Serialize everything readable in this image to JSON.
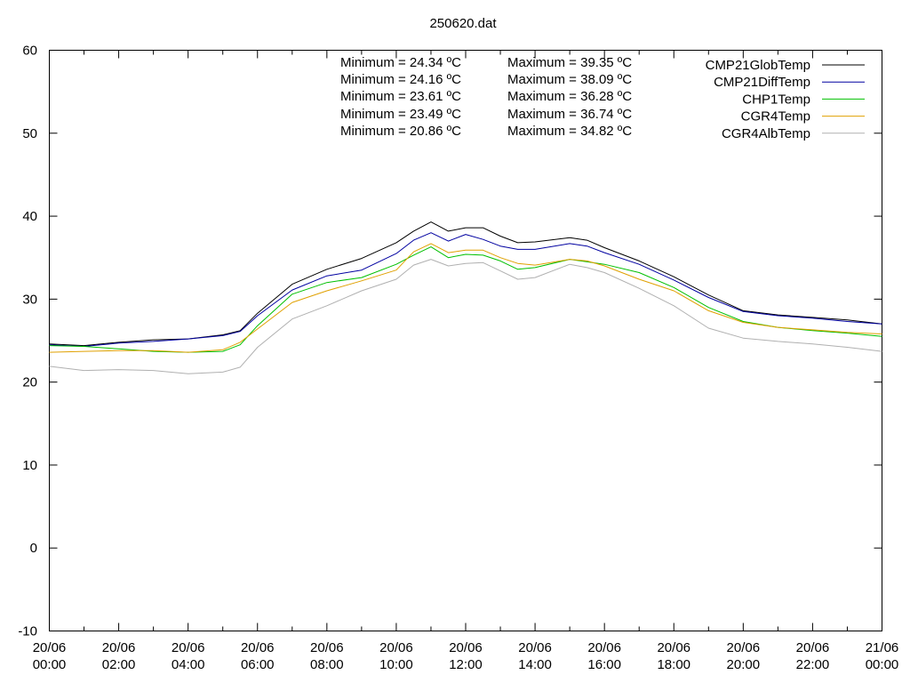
{
  "chart_data": {
    "type": "line",
    "title": "250620.dat",
    "xlabel": "",
    "ylabel": "",
    "ylim": [
      -10,
      60
    ],
    "yticks": [
      -10,
      0,
      10,
      20,
      30,
      40,
      50,
      60
    ],
    "xlim_hours": [
      0,
      24
    ],
    "xticks": [
      {
        "hour": 0,
        "date": "20/06",
        "time": "00:00"
      },
      {
        "hour": 2,
        "date": "20/06",
        "time": "02:00"
      },
      {
        "hour": 4,
        "date": "20/06",
        "time": "04:00"
      },
      {
        "hour": 6,
        "date": "20/06",
        "time": "06:00"
      },
      {
        "hour": 8,
        "date": "20/06",
        "time": "08:00"
      },
      {
        "hour": 10,
        "date": "20/06",
        "time": "10:00"
      },
      {
        "hour": 12,
        "date": "20/06",
        "time": "12:00"
      },
      {
        "hour": 14,
        "date": "20/06",
        "time": "14:00"
      },
      {
        "hour": 16,
        "date": "20/06",
        "time": "16:00"
      },
      {
        "hour": 18,
        "date": "20/06",
        "time": "18:00"
      },
      {
        "hour": 20,
        "date": "20/06",
        "time": "20:00"
      },
      {
        "hour": 22,
        "date": "20/06",
        "time": "22:00"
      },
      {
        "hour": 24,
        "date": "21/06",
        "time": "00:00"
      }
    ],
    "grid": false,
    "legend_position": "top-right",
    "stats": [
      {
        "min": "Minimum = 24.34 ºC",
        "max": "Maximum = 39.35 ºC"
      },
      {
        "min": "Minimum = 24.16 ºC",
        "max": "Maximum = 38.09 ºC"
      },
      {
        "min": "Minimum = 23.61 ºC",
        "max": "Maximum = 36.28 ºC"
      },
      {
        "min": "Minimum = 23.49 ºC",
        "max": "Maximum = 36.74 ºC"
      },
      {
        "min": "Minimum = 20.86 ºC",
        "max": "Maximum = 34.82 ºC"
      }
    ],
    "series": [
      {
        "name": "CMP21GlobTemp",
        "color": "#000000",
        "x": [
          0,
          1,
          2,
          3,
          4,
          5,
          5.5,
          6,
          7,
          8,
          9,
          10,
          10.5,
          11,
          11.5,
          12,
          12.5,
          13,
          13.5,
          14,
          15,
          15.5,
          16,
          17,
          18,
          19,
          20,
          21,
          22,
          23,
          24
        ],
        "y": [
          24.6,
          24.4,
          24.8,
          25.1,
          25.2,
          25.7,
          26.2,
          28.3,
          31.8,
          33.6,
          34.9,
          36.8,
          38.2,
          39.3,
          38.2,
          38.6,
          38.6,
          37.6,
          36.8,
          36.9,
          37.4,
          37.1,
          36.2,
          34.6,
          32.7,
          30.5,
          28.6,
          28.1,
          27.8,
          27.5,
          27.0
        ]
      },
      {
        "name": "CMP21DiffTemp",
        "color": "#0000a0",
        "x": [
          0,
          1,
          2,
          3,
          4,
          5,
          5.5,
          6,
          7,
          8,
          9,
          10,
          10.5,
          11,
          11.5,
          12,
          12.5,
          13,
          13.5,
          14,
          15,
          15.5,
          16,
          17,
          18,
          19,
          20,
          21,
          22,
          23,
          24
        ],
        "y": [
          24.5,
          24.3,
          24.7,
          24.9,
          25.2,
          25.6,
          26.1,
          28.0,
          31.1,
          32.8,
          33.5,
          35.5,
          37.1,
          38.0,
          37.0,
          37.8,
          37.2,
          36.4,
          36.0,
          36.0,
          36.7,
          36.4,
          35.6,
          34.2,
          32.3,
          30.2,
          28.5,
          28.0,
          27.7,
          27.3,
          27.0
        ]
      },
      {
        "name": "CHP1Temp",
        "color": "#00c000",
        "x": [
          0,
          1,
          2,
          3,
          4,
          5,
          5.5,
          6,
          7,
          8,
          9,
          10,
          10.5,
          11,
          11.5,
          12,
          12.5,
          13,
          13.5,
          14,
          15,
          15.5,
          16,
          17,
          18,
          19,
          20,
          21,
          22,
          23,
          24
        ],
        "y": [
          24.4,
          24.3,
          24.0,
          23.7,
          23.6,
          23.7,
          24.5,
          26.8,
          30.6,
          32.0,
          32.6,
          34.2,
          35.3,
          36.3,
          35.0,
          35.4,
          35.3,
          34.6,
          33.6,
          33.8,
          34.8,
          34.5,
          34.2,
          33.2,
          31.4,
          29.0,
          27.3,
          26.6,
          26.2,
          25.9,
          25.5
        ]
      },
      {
        "name": "CGR4Temp",
        "color": "#e0a000",
        "x": [
          0,
          1,
          2,
          3,
          4,
          5,
          5.5,
          6,
          7,
          8,
          9,
          10,
          10.5,
          11,
          11.5,
          12,
          12.5,
          13,
          13.5,
          14,
          15,
          15.5,
          16,
          17,
          18,
          19,
          20,
          21,
          22,
          23,
          24
        ],
        "y": [
          23.6,
          23.7,
          23.8,
          23.8,
          23.6,
          23.9,
          24.8,
          26.4,
          29.6,
          31.0,
          32.2,
          33.5,
          35.7,
          36.7,
          35.6,
          35.9,
          35.9,
          35.0,
          34.3,
          34.1,
          34.8,
          34.6,
          34.0,
          32.4,
          31.0,
          28.6,
          27.2,
          26.6,
          26.3,
          26.0,
          25.8
        ]
      },
      {
        "name": "CGR4AlbTemp",
        "color": "#b0b0b0",
        "x": [
          0,
          1,
          2,
          3,
          4,
          5,
          5.5,
          6,
          7,
          8,
          9,
          10,
          10.5,
          11,
          11.5,
          12,
          12.5,
          13,
          13.5,
          14,
          15,
          15.5,
          16,
          17,
          18,
          19,
          20,
          21,
          22,
          23,
          24
        ],
        "y": [
          21.9,
          21.4,
          21.5,
          21.4,
          21.0,
          21.2,
          21.8,
          24.2,
          27.6,
          29.2,
          31.0,
          32.4,
          34.1,
          34.8,
          34.0,
          34.3,
          34.4,
          33.4,
          32.4,
          32.6,
          34.2,
          33.8,
          33.2,
          31.3,
          29.2,
          26.5,
          25.3,
          24.9,
          24.6,
          24.2,
          23.7
        ]
      }
    ]
  }
}
